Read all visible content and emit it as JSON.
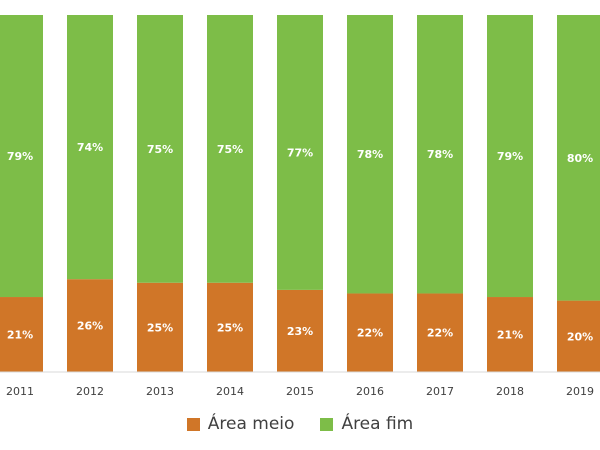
{
  "chart_data": {
    "type": "bar",
    "stacked": true,
    "percent_stacked": true,
    "categories": [
      "2011",
      "2012",
      "2013",
      "2014",
      "2015",
      "2016",
      "2017",
      "2018",
      "2019"
    ],
    "series": [
      {
        "name": "Área meio",
        "color": "#D07628",
        "values": [
          21,
          26,
          25,
          25,
          23,
          22,
          22,
          21,
          20
        ],
        "labels": [
          "21%",
          "26%",
          "25%",
          "25%",
          "23%",
          "22%",
          "22%",
          "21%",
          "20%"
        ]
      },
      {
        "name": "Área fim",
        "color": "#7DBD48",
        "values": [
          79,
          74,
          75,
          75,
          77,
          78,
          78,
          79,
          80
        ],
        "labels": [
          "79%",
          "74%",
          "75%",
          "75%",
          "77%",
          "78%",
          "78%",
          "79%",
          "80%"
        ]
      }
    ],
    "ylim": [
      0,
      100
    ],
    "grid": false,
    "legend_position": "bottom"
  }
}
